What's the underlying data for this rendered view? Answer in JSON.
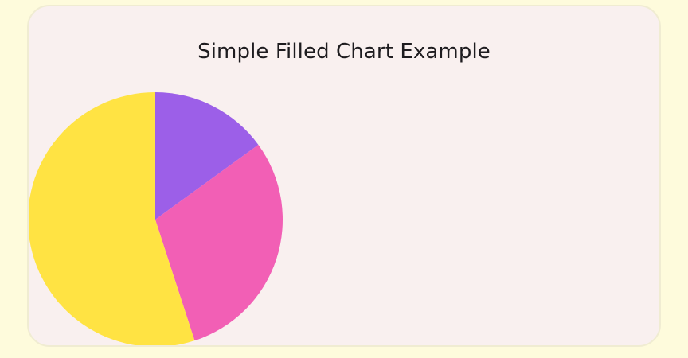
{
  "chart_data": {
    "type": "pie",
    "title": "Simple Filled Chart Example",
    "slices": [
      {
        "value": 15,
        "color": "#9c5fe8"
      },
      {
        "value": 30,
        "color": "#f25fb5"
      },
      {
        "value": 55,
        "color": "#ffe343"
      }
    ],
    "start_angle_deg": 0,
    "direction": "clockwise"
  },
  "colors": {
    "page_background": "#fefbdc",
    "card_background": "#f9f0ef",
    "card_border": "#f0ecd2",
    "title_text": "#1e1c1f"
  }
}
